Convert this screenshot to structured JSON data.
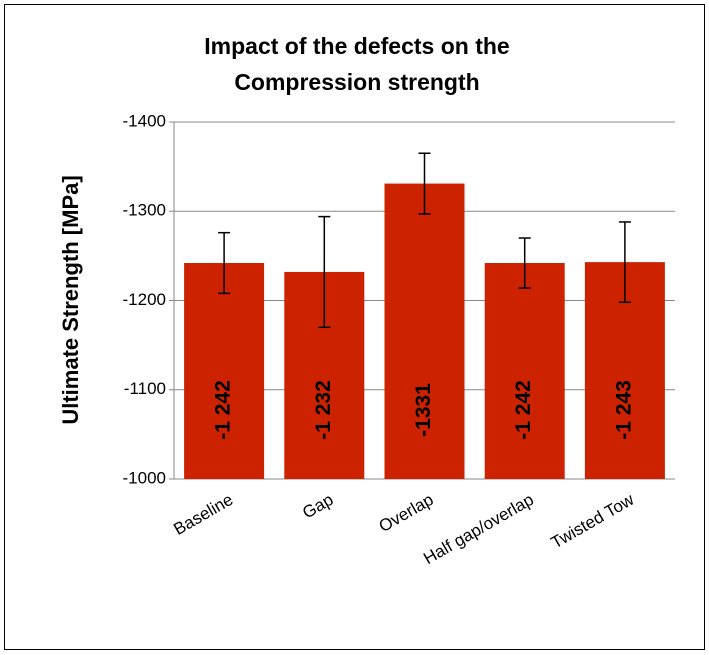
{
  "chart_data": {
    "type": "bar",
    "title": [
      "Impact of the defects on the",
      "Compression strength"
    ],
    "y_label": "Ultimate Strength [MPa]",
    "categories": [
      "Baseline",
      "Gap",
      "Overlap",
      "Half gap/overlap",
      "Twisted Tow"
    ],
    "values": [
      -1242,
      -1232,
      -1331,
      -1242,
      -1243
    ],
    "value_labels": [
      "-1 242",
      "-1 232",
      "-1331",
      "-1 242",
      "-1 243"
    ],
    "errors": [
      34,
      62,
      34,
      28,
      45
    ],
    "color": "#cc2200",
    "ylim": [
      -1000,
      -1400
    ],
    "yticks": [
      -1000,
      -1100,
      -1200,
      -1300,
      -1400
    ],
    "grid": true
  }
}
